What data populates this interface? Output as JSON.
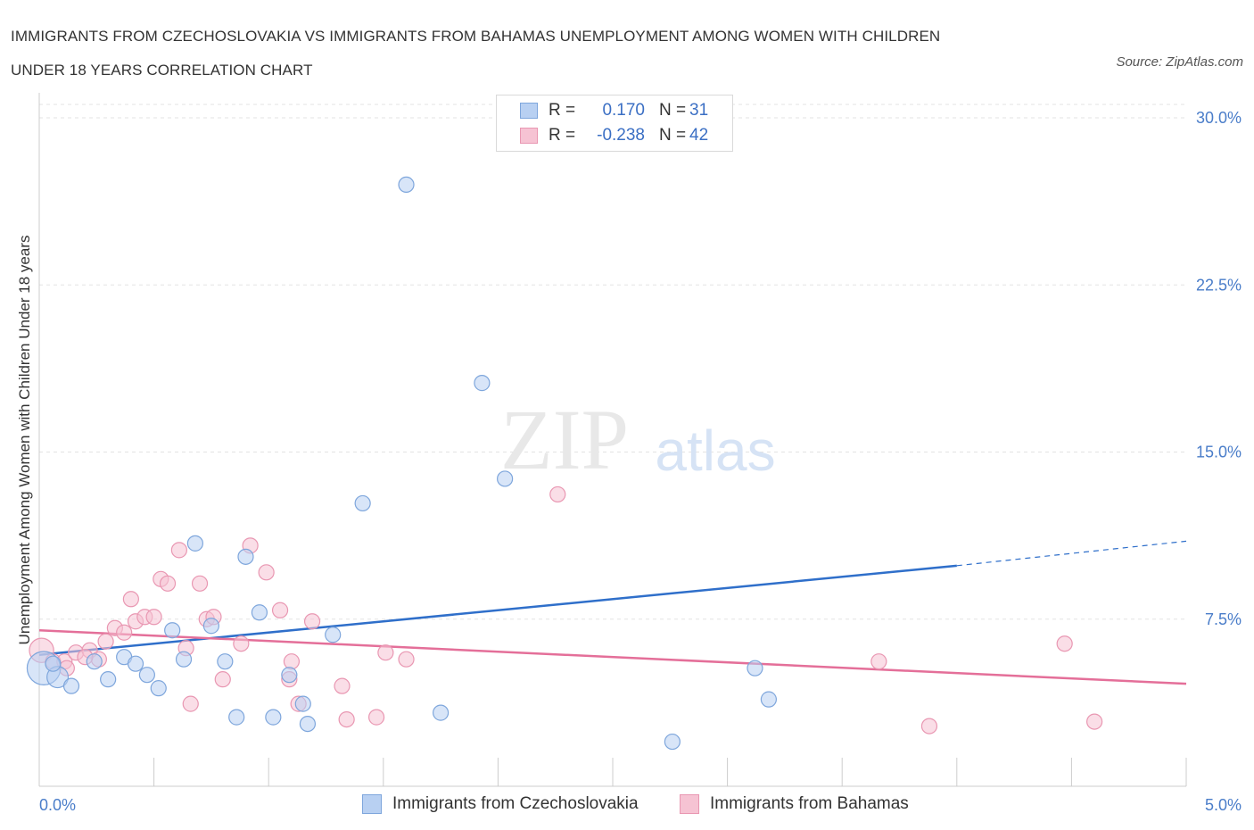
{
  "title_line1": "IMMIGRANTS FROM CZECHOSLOVAKIA VS IMMIGRANTS FROM BAHAMAS UNEMPLOYMENT AMONG WOMEN WITH CHILDREN",
  "title_line2": "UNDER 18 YEARS CORRELATION CHART",
  "source": "Source: ZipAtlas.com",
  "watermark_zip": "ZIP",
  "watermark_atlas": "atlas",
  "colors": {
    "blue_fill": "#b8d0f2",
    "blue_stroke": "#7ea6dc",
    "blue_line": "#2f6fca",
    "pink_fill": "#f6c3d3",
    "pink_stroke": "#e997b2",
    "pink_line": "#e46f99",
    "axis_text": "#4a7dc9"
  },
  "legend": {
    "r_label": "R =",
    "n_label": "N =",
    "series1_r": "0.170",
    "series1_n": "31",
    "series2_r": "-0.238",
    "series2_n": "42"
  },
  "bottom_legend": {
    "series1": "Immigrants from Czechoslovakia",
    "series2": "Immigrants from Bahamas"
  },
  "chart_data": {
    "type": "scatter",
    "title": "IMMIGRANTS FROM CZECHOSLOVAKIA VS IMMIGRANTS FROM BAHAMAS UNEMPLOYMENT AMONG WOMEN WITH CHILDREN UNDER 18 YEARS CORRELATION CHART",
    "xlabel": "",
    "ylabel": "Unemployment Among Women with Children Under 18 years",
    "xlim": [
      0,
      5
    ],
    "ylim": [
      0,
      30
    ],
    "x_tick_labels": [
      "0.0%",
      "5.0%"
    ],
    "y_ticks": [
      7.5,
      15.0,
      22.5,
      30.0
    ],
    "y_tick_labels": [
      "7.5%",
      "15.0%",
      "22.5%",
      "30.0%"
    ],
    "grid": true,
    "legend_position": "top-center",
    "series": [
      {
        "name": "Immigrants from Czechoslovakia",
        "color": "blue",
        "R": 0.17,
        "N": 31,
        "points": [
          [
            0.02,
            5.3,
            2.2
          ],
          [
            0.08,
            4.9,
            1.4
          ],
          [
            0.14,
            4.5,
            1
          ],
          [
            0.24,
            5.6,
            1
          ],
          [
            0.3,
            4.8,
            1
          ],
          [
            0.37,
            5.8,
            1
          ],
          [
            0.42,
            5.5,
            1
          ],
          [
            0.47,
            5.0,
            1
          ],
          [
            0.52,
            4.4,
            1
          ],
          [
            0.58,
            7.0,
            1
          ],
          [
            0.63,
            5.7,
            1
          ],
          [
            0.68,
            10.9,
            1
          ],
          [
            0.75,
            7.2,
            1
          ],
          [
            0.81,
            5.6,
            1
          ],
          [
            0.86,
            3.1,
            1
          ],
          [
            0.9,
            10.3,
            1
          ],
          [
            0.96,
            7.8,
            1
          ],
          [
            1.02,
            3.1,
            1
          ],
          [
            1.09,
            5.0,
            1
          ],
          [
            1.15,
            3.7,
            1
          ],
          [
            1.17,
            2.8,
            1
          ],
          [
            1.28,
            6.8,
            1
          ],
          [
            1.41,
            12.7,
            1
          ],
          [
            1.6,
            27.0,
            1
          ],
          [
            1.75,
            3.3,
            1
          ],
          [
            1.93,
            18.1,
            1
          ],
          [
            2.03,
            13.8,
            1
          ],
          [
            2.76,
            2.0,
            1
          ],
          [
            3.12,
            5.3,
            1
          ],
          [
            3.18,
            3.9,
            1
          ],
          [
            0.06,
            5.5,
            1
          ]
        ],
        "trend": {
          "x0": 0,
          "y0": 5.9,
          "x1": 4.0,
          "y1": 9.9,
          "dashed_to_x": 5.0,
          "dashed_to_y": 11.0
        }
      },
      {
        "name": "Immigrants from Bahamas",
        "color": "pink",
        "R": -0.238,
        "N": 42,
        "points": [
          [
            0.01,
            6.1,
            1.6
          ],
          [
            0.06,
            5.6,
            1
          ],
          [
            0.11,
            5.6,
            1
          ],
          [
            0.16,
            6.0,
            1
          ],
          [
            0.22,
            6.1,
            1
          ],
          [
            0.26,
            5.7,
            1
          ],
          [
            0.29,
            6.5,
            1
          ],
          [
            0.33,
            7.1,
            1
          ],
          [
            0.37,
            6.9,
            1
          ],
          [
            0.4,
            8.4,
            1
          ],
          [
            0.42,
            7.4,
            1
          ],
          [
            0.46,
            7.6,
            1
          ],
          [
            0.5,
            7.6,
            1
          ],
          [
            0.53,
            9.3,
            1
          ],
          [
            0.56,
            9.1,
            1
          ],
          [
            0.61,
            10.6,
            1
          ],
          [
            0.64,
            6.2,
            1
          ],
          [
            0.66,
            3.7,
            1
          ],
          [
            0.7,
            9.1,
            1
          ],
          [
            0.73,
            7.5,
            1
          ],
          [
            0.76,
            7.6,
            1
          ],
          [
            0.8,
            4.8,
            1
          ],
          [
            0.88,
            6.4,
            1
          ],
          [
            0.92,
            10.8,
            1
          ],
          [
            0.99,
            9.6,
            1
          ],
          [
            1.05,
            7.9,
            1
          ],
          [
            1.1,
            5.6,
            1
          ],
          [
            1.09,
            4.8,
            1
          ],
          [
            1.13,
            3.7,
            1
          ],
          [
            1.19,
            7.4,
            1
          ],
          [
            1.32,
            4.5,
            1
          ],
          [
            1.34,
            3.0,
            1
          ],
          [
            1.47,
            3.1,
            1
          ],
          [
            1.51,
            6.0,
            1
          ],
          [
            1.6,
            5.7,
            1
          ],
          [
            2.26,
            13.1,
            1
          ],
          [
            3.66,
            5.6,
            1
          ],
          [
            3.88,
            2.7,
            1
          ],
          [
            4.47,
            6.4,
            1
          ],
          [
            4.6,
            2.9,
            1
          ],
          [
            0.12,
            5.3,
            1
          ],
          [
            0.2,
            5.8,
            1
          ]
        ],
        "trend": {
          "x0": 0,
          "y0": 7.0,
          "x1": 5.0,
          "y1": 4.6
        }
      }
    ]
  }
}
